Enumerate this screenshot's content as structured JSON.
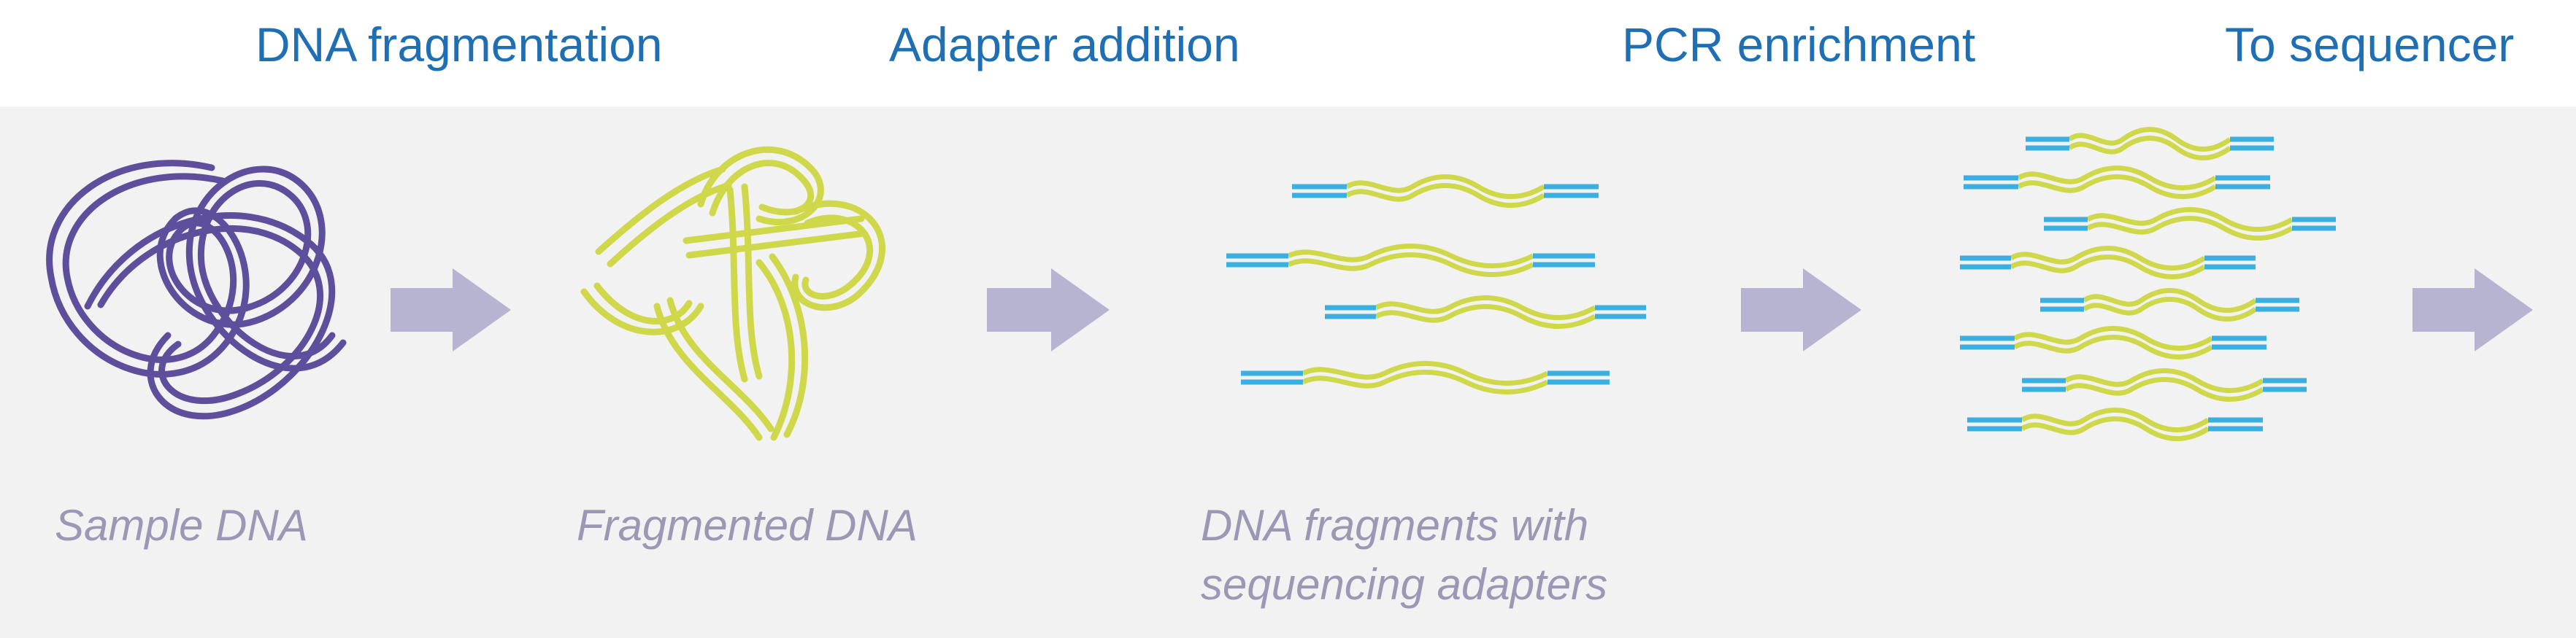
{
  "steps": [
    {
      "title": "DNA fragmentation"
    },
    {
      "title": "Adapter addition"
    },
    {
      "title": "PCR enrichment"
    },
    {
      "title": "To sequencer"
    }
  ],
  "stages": [
    {
      "label": "Sample DNA"
    },
    {
      "label": "Fragmented DNA"
    },
    {
      "label_line1": "DNA fragments with",
      "label_line2": "sequencing adapters"
    }
  ],
  "colors": {
    "title": "#1f6fb5",
    "sample_dna": "#5e4f9c",
    "fragment": "#cfd84a",
    "adapter": "#3bb0e0",
    "arrow": "#b7b4d1",
    "label": "#9a98b4",
    "band": "#f2f2f2"
  },
  "icons": [
    "right-arrow-icon"
  ]
}
